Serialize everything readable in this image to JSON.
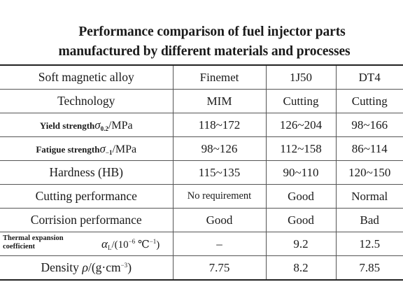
{
  "title": {
    "line1": "Performance comparison of fuel injector parts",
    "line2": "manufactured by different materials and processes"
  },
  "table": {
    "header": {
      "label": "Soft magnetic alloy",
      "cols": [
        "Finemet",
        "1J50",
        "DT4"
      ]
    },
    "rows": [
      {
        "key": "technology",
        "label": "Technology",
        "values": [
          "MIM",
          "Cutting",
          "Cutting"
        ]
      },
      {
        "key": "yield-strength",
        "label": "Yield strength",
        "symbol": "σ",
        "subscript": "0.2",
        "unit": "/MPa",
        "values": [
          "118~172",
          "126~204",
          "98~166"
        ]
      },
      {
        "key": "fatigue-strength",
        "label": "Fatigue strength",
        "symbol": "σ",
        "subscript": "−1",
        "unit": "/MPa",
        "values": [
          "98~126",
          "112~158",
          "86~114"
        ]
      },
      {
        "key": "hardness",
        "label": "Hardness (HB)",
        "values": [
          "115~135",
          "90~110",
          "120~150"
        ]
      },
      {
        "key": "cutting-performance",
        "label": "Cutting performance",
        "values": [
          "No requirement",
          "Good",
          "Normal"
        ]
      },
      {
        "key": "corrosion-performance",
        "label": "Corrision performance",
        "values": [
          "Good",
          "Good",
          "Bad"
        ]
      },
      {
        "key": "thermal-expansion",
        "label_line1": "Thermal expansion",
        "label_line2": "coefficient",
        "symbol": "α",
        "subscript": "L",
        "unit_prefix": "/(10",
        "unit_exp": "−6",
        "unit_mid": " ℃",
        "unit_exp2": "−1",
        "unit_suffix": ")",
        "values": [
          "–",
          "9.2",
          "12.5"
        ]
      },
      {
        "key": "density",
        "label": "Density",
        "symbol": "ρ",
        "unit_prefix": "/(g·cm",
        "unit_exp": "−3",
        "unit_suffix": ")",
        "values": [
          "7.75",
          "8.2",
          "7.85"
        ]
      }
    ]
  }
}
